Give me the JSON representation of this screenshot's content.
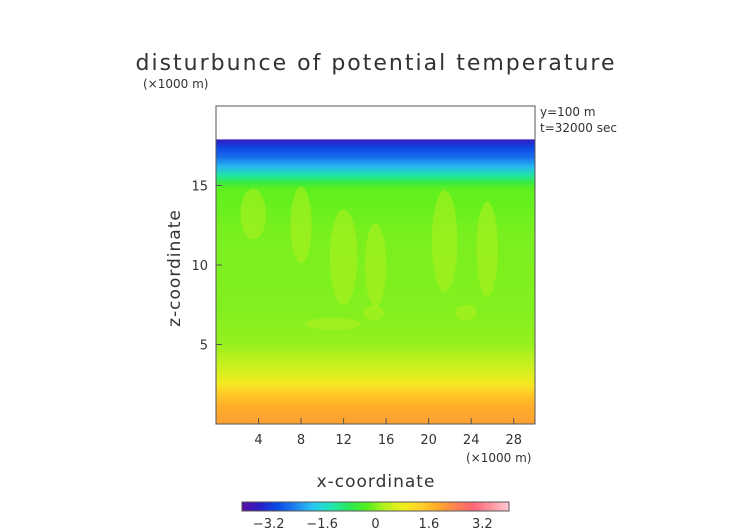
{
  "chart_data": {
    "type": "heatmap",
    "title": "disturbunce of potential temperature",
    "xlabel": "x-coordinate",
    "ylabel": "z-coordinate",
    "x_unit": "(×1000 m)",
    "y_unit": "(×1000 m)",
    "annotations": [
      "y=100 m",
      "t=32000 sec"
    ],
    "xlim": [
      0,
      30
    ],
    "ylim": [
      0,
      20
    ],
    "x_ticks": [
      4,
      8,
      12,
      16,
      20,
      24,
      28
    ],
    "y_ticks": [
      5,
      10,
      15
    ],
    "data_top_z": 17.9,
    "colorbar": {
      "range": [
        -4.0,
        4.0
      ],
      "tick_values": [
        -3.2,
        -1.6,
        0,
        1.6,
        3.2
      ],
      "tick_labels": [
        "−3.2",
        "−1.6",
        "0",
        "1.6",
        "3.2"
      ],
      "colors": [
        "#5a0fa0",
        "#2a1ec8",
        "#0a4be6",
        "#1e82f0",
        "#28c8f0",
        "#1ee6b4",
        "#28e65a",
        "#50f01e",
        "#b4f01e",
        "#f0f01e",
        "#ffd228",
        "#ffaa28",
        "#ff8250",
        "#ff6478",
        "#ff96a0",
        "#ffc8d2"
      ]
    },
    "vertical_profile": [
      {
        "z": 0.0,
        "value": 2.0
      },
      {
        "z": 1.2,
        "value": 1.8
      },
      {
        "z": 1.8,
        "value": 1.5
      },
      {
        "z": 2.2,
        "value": 1.2
      },
      {
        "z": 2.6,
        "value": 0.9
      },
      {
        "z": 3.2,
        "value": 0.6
      },
      {
        "z": 3.8,
        "value": 0.4
      },
      {
        "z": 4.4,
        "value": 0.25
      },
      {
        "z": 5.0,
        "value": 0.1
      },
      {
        "z": 7.0,
        "value": 0.0
      },
      {
        "z": 12.0,
        "value": -0.05
      },
      {
        "z": 14.8,
        "value": -0.2
      },
      {
        "z": 15.2,
        "value": -0.6
      },
      {
        "z": 15.6,
        "value": -1.2
      },
      {
        "z": 16.2,
        "value": -2.0
      },
      {
        "z": 16.8,
        "value": -2.6
      },
      {
        "z": 17.4,
        "value": -3.0
      },
      {
        "z": 17.9,
        "value": -3.6
      }
    ]
  }
}
